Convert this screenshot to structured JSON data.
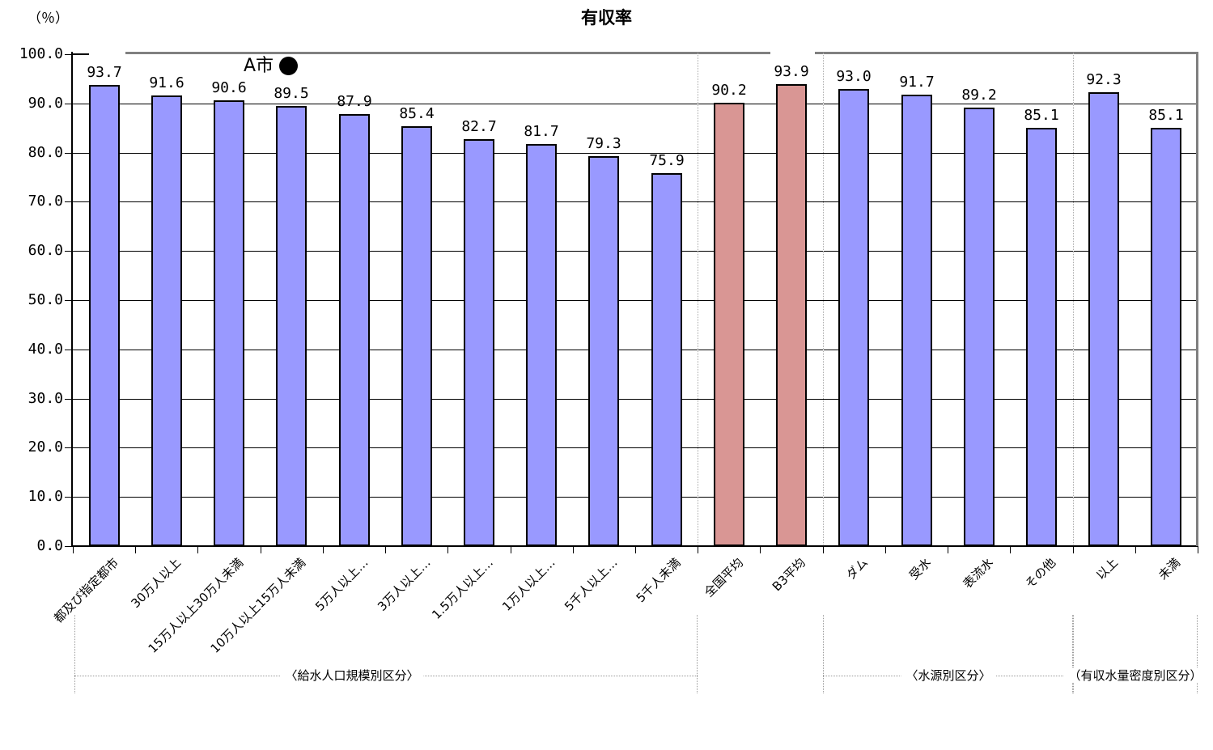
{
  "title": "有収率",
  "y_unit_label": "（％）",
  "colors": {
    "bar": "#9999FF",
    "bar_highlight": "#D99694",
    "bar_border": "#000000",
    "gridline": "#000000",
    "axis": "#000000",
    "plot_frame_gray": "#808080",
    "separator_dotted": "#AAAAAA",
    "bracket_dotted": "#999999",
    "annotation_marker": "#000000"
  },
  "annotation": {
    "label": "A市",
    "symbol": "●"
  },
  "chart_data": {
    "type": "bar",
    "title": "有収率",
    "ylabel": "（％）",
    "xlabel": "",
    "ylim": [
      0,
      100
    ],
    "ytick_step": 10,
    "grid": true,
    "legend": "none",
    "ytick_labels": [
      "0.0",
      "10.0",
      "20.0",
      "30.0",
      "40.0",
      "50.0",
      "60.0",
      "70.0",
      "80.0",
      "90.0",
      "100.0"
    ],
    "categories": [
      "都及び指定都市",
      "30万人以上",
      "15万人以上30万人未満",
      "10万人以上15万人未満",
      "5万人以上…",
      "3万人以上…",
      "1.5万人以上…",
      "1万人以上…",
      "5千人以上…",
      "5千人未満",
      "全国平均",
      "B3平均",
      "ダム",
      "受水",
      "表流水",
      "その他",
      "以上",
      "未満"
    ],
    "values": [
      93.7,
      91.6,
      90.6,
      89.5,
      87.9,
      85.4,
      82.7,
      81.7,
      79.3,
      75.9,
      90.2,
      93.9,
      93.0,
      91.7,
      89.2,
      85.1,
      92.3,
      85.1
    ],
    "value_labels": [
      "93.7",
      "91.6",
      "90.6",
      "89.5",
      "87.9",
      "85.4",
      "82.7",
      "81.7",
      "79.3",
      "75.9",
      "90.2",
      "93.9",
      "93.0",
      "91.7",
      "89.2",
      "85.1",
      "92.3",
      "85.1"
    ],
    "highlight_indices": [
      10,
      11
    ],
    "separators_after_index": [
      9,
      11,
      15
    ],
    "groups": [
      {
        "label": "〈給水人口規模別区分〉",
        "start": 0,
        "end": 9,
        "label_anchor": 0.445
      },
      {
        "label": "〈水源別区分〉",
        "start": 12,
        "end": 15,
        "label_anchor": 0.5
      },
      {
        "label": "（有収水量密度別区分）",
        "start": 16,
        "end": 17,
        "label_anchor": 0.5
      }
    ],
    "annotation_marker": {
      "label": "A市",
      "symbol": "●"
    }
  }
}
